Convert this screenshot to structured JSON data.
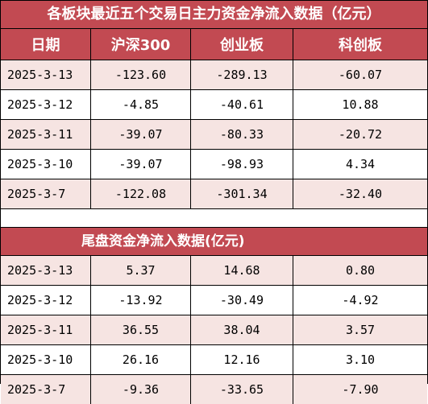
{
  "colors": {
    "header_bg": "#c24a52",
    "header_text": "#ffffff",
    "row_shade": "#f6e4e2"
  },
  "table1": {
    "title": "各板块最近五个交易日主力资金净流入数据（亿元）",
    "headers": [
      "日期",
      "沪深300",
      "创业板",
      "科创板"
    ],
    "rows": [
      [
        "2025-3-13",
        "-123.60",
        "-289.13",
        "-60.07"
      ],
      [
        "2025-3-12",
        "-4.85",
        "-40.61",
        "10.88"
      ],
      [
        "2025-3-11",
        "-39.07",
        "-80.33",
        "-20.72"
      ],
      [
        "2025-3-10",
        "-39.07",
        "-98.93",
        "4.34"
      ],
      [
        "2025-3-7",
        "-122.08",
        "-301.34",
        "-32.40"
      ]
    ]
  },
  "table2": {
    "title": "尾盘资金净流入数据(亿元)",
    "rows": [
      [
        "2025-3-13",
        "5.37",
        "14.68",
        "0.80"
      ],
      [
        "2025-3-12",
        "-13.92",
        "-30.49",
        "-4.92"
      ],
      [
        "2025-3-11",
        "36.55",
        "38.04",
        "3.57"
      ],
      [
        "2025-3-10",
        "26.16",
        "12.16",
        "3.10"
      ],
      [
        "2025-3-7",
        "-9.36",
        "-33.65",
        "-7.90"
      ]
    ]
  }
}
